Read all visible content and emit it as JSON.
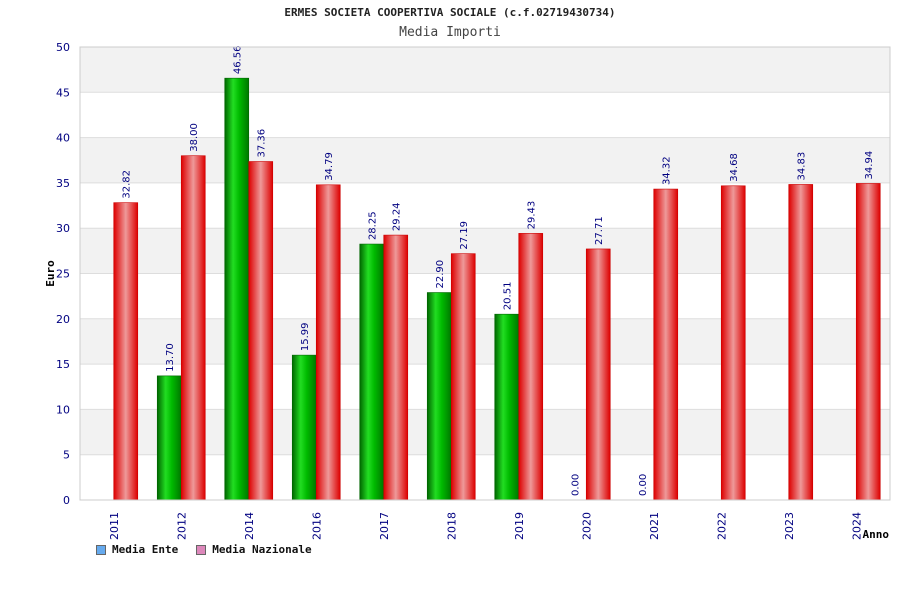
{
  "chart_data": {
    "type": "bar",
    "title": "ERMES SOCIETA COOPERTIVA SOCIALE (c.f.02719430734)",
    "subtitle": "Media Importi",
    "ylabel": "Euro",
    "xlabel": "Anno",
    "ylim": [
      0,
      50
    ],
    "yticks": [
      0,
      5,
      10,
      15,
      20,
      25,
      30,
      35,
      40,
      45,
      50
    ],
    "categories": [
      "2011",
      "2012",
      "2014",
      "2016",
      "2017",
      "2018",
      "2019",
      "2020",
      "2021",
      "2022",
      "2023",
      "2024"
    ],
    "series": [
      {
        "name": "Media Ente",
        "values": [
          null,
          13.7,
          46.56,
          15.99,
          28.25,
          22.9,
          20.51,
          0.0,
          0.0,
          null,
          null,
          null
        ],
        "labels": [
          null,
          "13.70",
          "46.56",
          "15.99",
          "28.25",
          "22.90",
          "20.51",
          "0.00",
          "0.00",
          null,
          null,
          null
        ],
        "color": "#00aa00",
        "legend_color": "#66aaee"
      },
      {
        "name": "Media Nazionale",
        "values": [
          32.82,
          38.0,
          37.36,
          34.79,
          29.24,
          27.19,
          29.43,
          27.71,
          34.32,
          34.68,
          34.83,
          34.94
        ],
        "labels": [
          "32.82",
          "38.00",
          "37.36",
          "34.79",
          "29.24",
          "27.19",
          "29.43",
          "27.71",
          "34.32",
          "34.68",
          "34.83",
          "34.94"
        ],
        "color": "#ee1111",
        "legend_color": "#dd88bb"
      }
    ],
    "grid": true,
    "legend_position": "bottom-left"
  }
}
